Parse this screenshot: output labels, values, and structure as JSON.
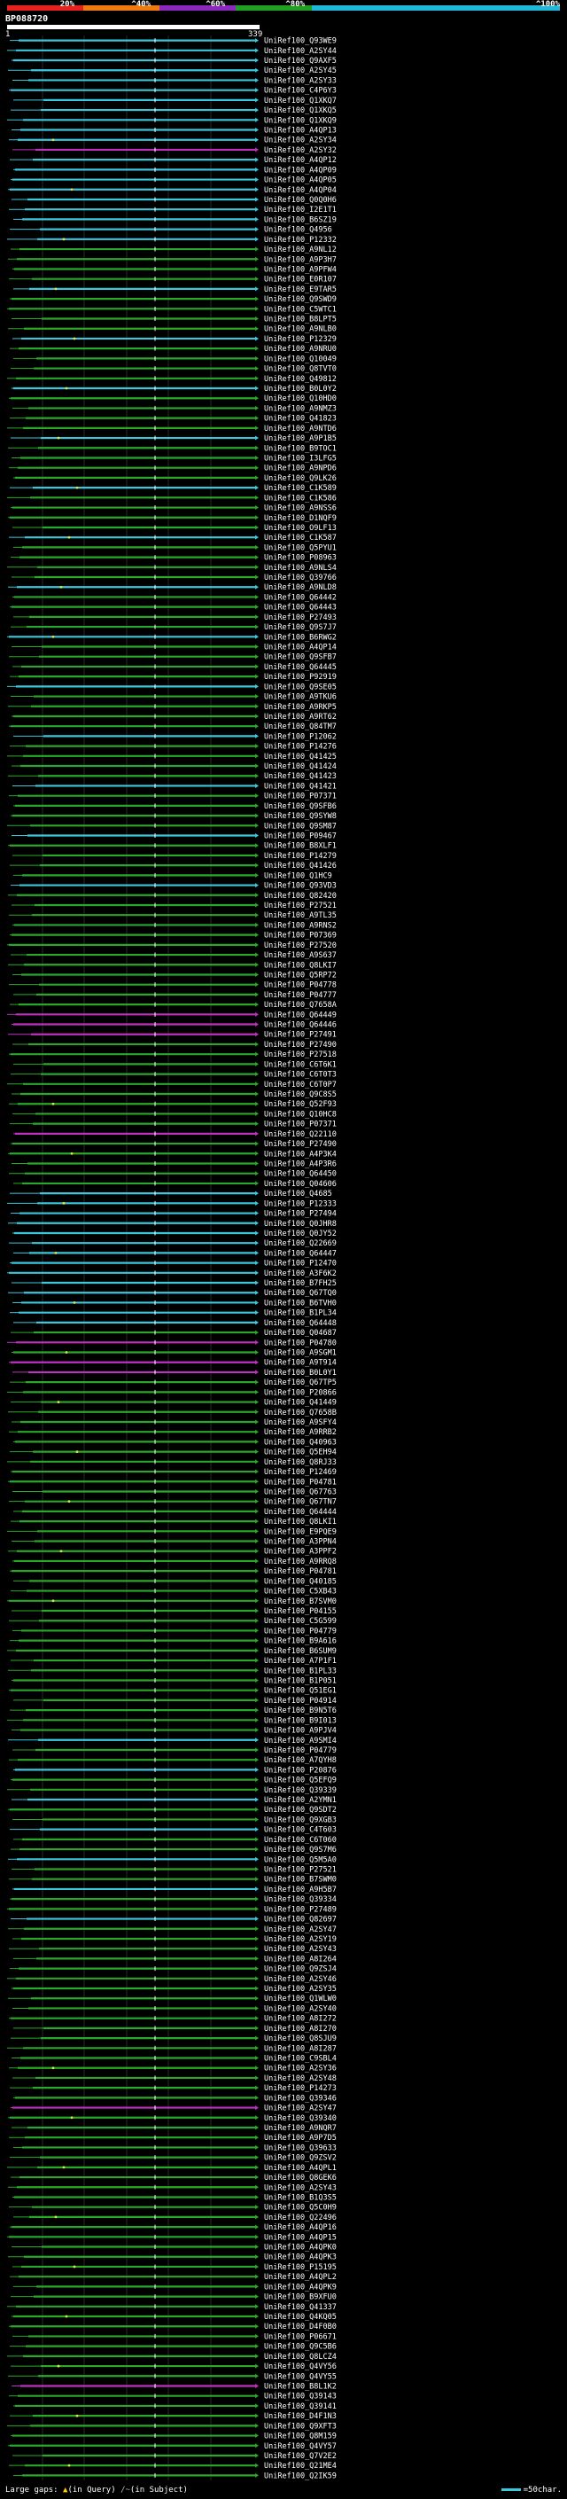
{
  "legend": {
    "segments": [
      {
        "label": "20%",
        "color": "#e8201e"
      },
      {
        "label": "^40%",
        "color": "#f07a10"
      },
      {
        "label": "^60%",
        "color": "#8c28c0"
      },
      {
        "label": "^80%",
        "color": "#20a020"
      },
      {
        "label": "^100%",
        "color": "#20b8d8"
      }
    ]
  },
  "query": {
    "name": "BP088720",
    "start": "1",
    "end": "339"
  },
  "colors": {
    "cyan": "#3cc8dc",
    "green": "#2aa82a",
    "magenta": "#c030c0",
    "orange": "#e07a10",
    "marker": "#e8e040"
  },
  "hits": [
    "UniRef100_Q93WE9",
    "UniRef100_A2SY44",
    "UniRef100_Q9AXF5",
    "UniRef100_A2SY45",
    "UniRef100_A2SY33",
    "UniRef100_C4P6Y3",
    "UniRef100_Q1XKQ7",
    "UniRef100_Q1XKQ5",
    "UniRef100_Q1XKQ9",
    "UniRef100_A4QP13",
    "UniRef100_A2SY34",
    "UniRef100_A2SY32",
    "UniRef100_A4QP12",
    "UniRef100_A4QP09",
    "UniRef100_A4QP05",
    "UniRef100_A4QP04",
    "UniRef100_Q0Q0H6",
    "UniRef100_I2E1T1",
    "UniRef100_B6SZ19",
    "UniRef100_Q4956",
    "UniRef100_P12332",
    "UniRef100_A9NL12",
    "UniRef100_A9P3H7",
    "UniRef100_A9PFW4",
    "UniRef100_E0R107",
    "UniRef100_E9TAR5",
    "UniRef100_Q9SWD9",
    "UniRef100_C5WTC1",
    "UniRef100_B8LPT5",
    "UniRef100_A9NLB0",
    "UniRef100_P12329",
    "UniRef100_A9NRU0",
    "UniRef100_Q10049",
    "UniRef100_Q8TVT0",
    "UniRef100_Q49812",
    "UniRef100_B0L0Y2",
    "UniRef100_Q10HD0",
    "UniRef100_A9NMZ3",
    "UniRef100_Q41823",
    "UniRef100_A9NTD6",
    "UniRef100_A9P1B5",
    "UniRef100_B9TOC1",
    "UniRef100_I3LFG5",
    "UniRef100_A9NPD6",
    "UniRef100_Q9LK26",
    "UniRef100_C1K589",
    "UniRef100_C1K586",
    "UniRef100_A9NSS6",
    "UniRef100_D1NQF9",
    "UniRef100_O9LF13",
    "UniRef100_C1K587",
    "UniRef100_Q5PYU1",
    "UniRef100_P08963",
    "UniRef100_A9NLS4",
    "UniRef100_Q39766",
    "UniRef100_A9NLD8",
    "UniRef100_Q64442",
    "UniRef100_Q64443",
    "UniRef100_P27493",
    "UniRef100_Q9S7J7",
    "UniRef100_B6RWG2",
    "UniRef100_A4QP14",
    "UniRef100_Q9SFB7",
    "UniRef100_Q64445",
    "UniRef100_P92919",
    "UniRef100_Q9SE05",
    "UniRef100_A9TKU6",
    "UniRef100_A9RKP5",
    "UniRef100_A9RT62",
    "UniRef100_Q84TM7",
    "UniRef100_P12062",
    "UniRef100_P14276",
    "UniRef100_Q41425",
    "UniRef100_Q41424",
    "UniRef100_Q41423",
    "UniRef100_Q41421",
    "UniRef100_P07371",
    "UniRef100_Q9SFB6",
    "UniRef100_Q9SYW8",
    "UniRef100_Q9SM87",
    "UniRef100_P09467",
    "UniRef100_B8XLF1",
    "UniRef100_P14279",
    "UniRef100_Q41426",
    "UniRef100_Q1HC9",
    "UniRef100_Q93VD3",
    "UniRef100_Q82420",
    "UniRef100_P27521",
    "UniRef100_A9TL35",
    "UniRef100_A9RNS2",
    "UniRef100_P07369",
    "UniRef100_P27520",
    "UniRef100_A9S637",
    "UniRef100_Q8LKI7",
    "UniRef100_Q5RP72",
    "UniRef100_P04778",
    "UniRef100_P04777",
    "UniRef100_Q7658A",
    "UniRef100_Q64449",
    "UniRef100_Q64446",
    "UniRef100_P27491",
    "UniRef100_P27490",
    "UniRef100_P27518",
    "UniRef100_C6T6K1",
    "UniRef100_C6T0T3",
    "UniRef100_C6T0P7",
    "UniRef100_Q9C8S5",
    "UniRef100_Q52F93",
    "UniRef100_Q10HC8",
    "UniRef100_P07371",
    "UniRef100_Q22110",
    "UniRef100_P27490",
    "UniRef100_A4P3K4",
    "UniRef100_A4P3R6",
    "UniRef100_Q64450",
    "UniRef100_Q04606",
    "UniRef100_Q4685",
    "UniRef100_P12333",
    "UniRef100_P27494",
    "UniRef100_Q0JHR8",
    "UniRef100_Q0JY52",
    "UniRef100_Q22669",
    "UniRef100_Q64447",
    "UniRef100_P12470",
    "UniRef100_A3F6K2",
    "UniRef100_B7FH25",
    "UniRef100_Q67TQ0",
    "UniRef100_B6TVH0",
    "UniRef100_B1PL34",
    "UniRef100_Q64448",
    "UniRef100_Q04687",
    "UniRef100_P04780",
    "UniRef100_A9SGM1",
    "UniRef100_A9T914",
    "UniRef100_B0L0Y1",
    "UniRef100_Q67TP5",
    "UniRef100_P20866",
    "UniRef100_Q41449",
    "UniRef100_Q7658B",
    "UniRef100_A9SFY4",
    "UniRef100_A9RRB2",
    "UniRef100_Q40963",
    "UniRef100_Q5EH94",
    "UniRef100_Q8RJ33",
    "UniRef100_P12469",
    "UniRef100_P04781",
    "UniRef100_Q67763",
    "UniRef100_Q67TN7",
    "UniRef100_Q64444",
    "UniRef100_Q8LKI1",
    "UniRef100_E9PQE9",
    "UniRef100_A3PPN4",
    "UniRef100_A3PPF2",
    "UniRef100_A9RRQ8",
    "UniRef100_P04781",
    "UniRef100_Q40185",
    "UniRef100_C5XB43",
    "UniRef100_B7SVM0",
    "UniRef100_P04155",
    "UniRef100_C5G599",
    "UniRef100_P04779",
    "UniRef100_B9A616",
    "UniRef100_B6SUM9",
    "UniRef100_A7P1F1",
    "UniRef100_B1PL33",
    "UniRef100_B1P051",
    "UniRef100_Q51EG1",
    "UniRef100_P04914",
    "UniRef100_B9N5T6",
    "UniRef100_B9I013",
    "UniRef100_A9PJV4",
    "UniRef100_A9SMI4",
    "UniRef100_P04779",
    "UniRef100_A7QYH8",
    "UniRef100_P20876",
    "UniRef100_Q5EFQ9",
    "UniRef100_Q39339",
    "UniRef100_A2YMN1",
    "UniRef100_Q9SDT2",
    "UniRef100_Q9XGB3",
    "UniRef100_C4T603",
    "UniRef100_C6T060",
    "UniRef100_Q9S7M6",
    "UniRef100_Q5M5A0",
    "UniRef100_P27521",
    "UniRef100_B7SWM0",
    "UniRef100_A9H5B7",
    "UniRef100_Q39334",
    "UniRef100_P27489",
    "UniRef100_Q82697",
    "UniRef100_A2SY47",
    "UniRef100_A2SY19",
    "UniRef100_A2SY43",
    "UniRef100_A8I264",
    "UniRef100_Q9ZSJ4",
    "UniRef100_A2SY46",
    "UniRef100_A2SY35",
    "UniRef100_Q1WLW0",
    "UniRef100_A2SY40",
    "UniRef100_A8I272",
    "UniRef100_A8I270",
    "UniRef100_Q8SJU9",
    "UniRef100_A8I287",
    "UniRef100_C9SBL4",
    "UniRef100_A2SY36",
    "UniRef100_A2SY48",
    "UniRef100_P14273",
    "UniRef100_Q39346",
    "UniRef100_A2SY47",
    "UniRef100_Q39340",
    "UniRef100_A9NQR7",
    "UniRef100_A9P7D5",
    "UniRef100_Q39633",
    "UniRef100_Q9ZSV2",
    "UniRef100_A4QPL1",
    "UniRef100_Q8GEK6",
    "UniRef100_A2SY43",
    "UniRef100_B1Q3S5",
    "UniRef100_Q5C0H9",
    "UniRef100_Q22496",
    "UniRef100_A4QP16",
    "UniRef100_A4QP15",
    "UniRef100_A4QPK0",
    "UniRef100_A4QPK3",
    "UniRef100_P15195",
    "UniRef100_A4QPL2",
    "UniRef100_A4QPK9",
    "UniRef100_B9XFU0",
    "UniRef100_Q41337",
    "UniRef100_Q4KQ05",
    "UniRef100_D4F0B0",
    "UniRef100_P06671",
    "UniRef100_Q9C5B6",
    "UniRef100_Q8LCZ4",
    "UniRef100_Q4VY56",
    "UniRef100_Q4VY55",
    "UniRef100_B8L1K2",
    "UniRef100_Q39143",
    "UniRef100_Q39141",
    "UniRef100_D4F1N3",
    "UniRef100_Q9XFT3",
    "UniRef100_Q8M159",
    "UniRef100_Q4VY57",
    "UniRef100_Q7V2E2",
    "UniRef100_Q21ME4",
    "UniRef100_Q2IK59"
  ],
  "footer": {
    "gaps_label": "Large gaps:",
    "gaps_query_mark": "▲",
    "gaps_query": "(in Query)",
    "gaps_subject_mark": "/~",
    "gaps_subject": "(in Subject)",
    "scale": "=50char."
  }
}
